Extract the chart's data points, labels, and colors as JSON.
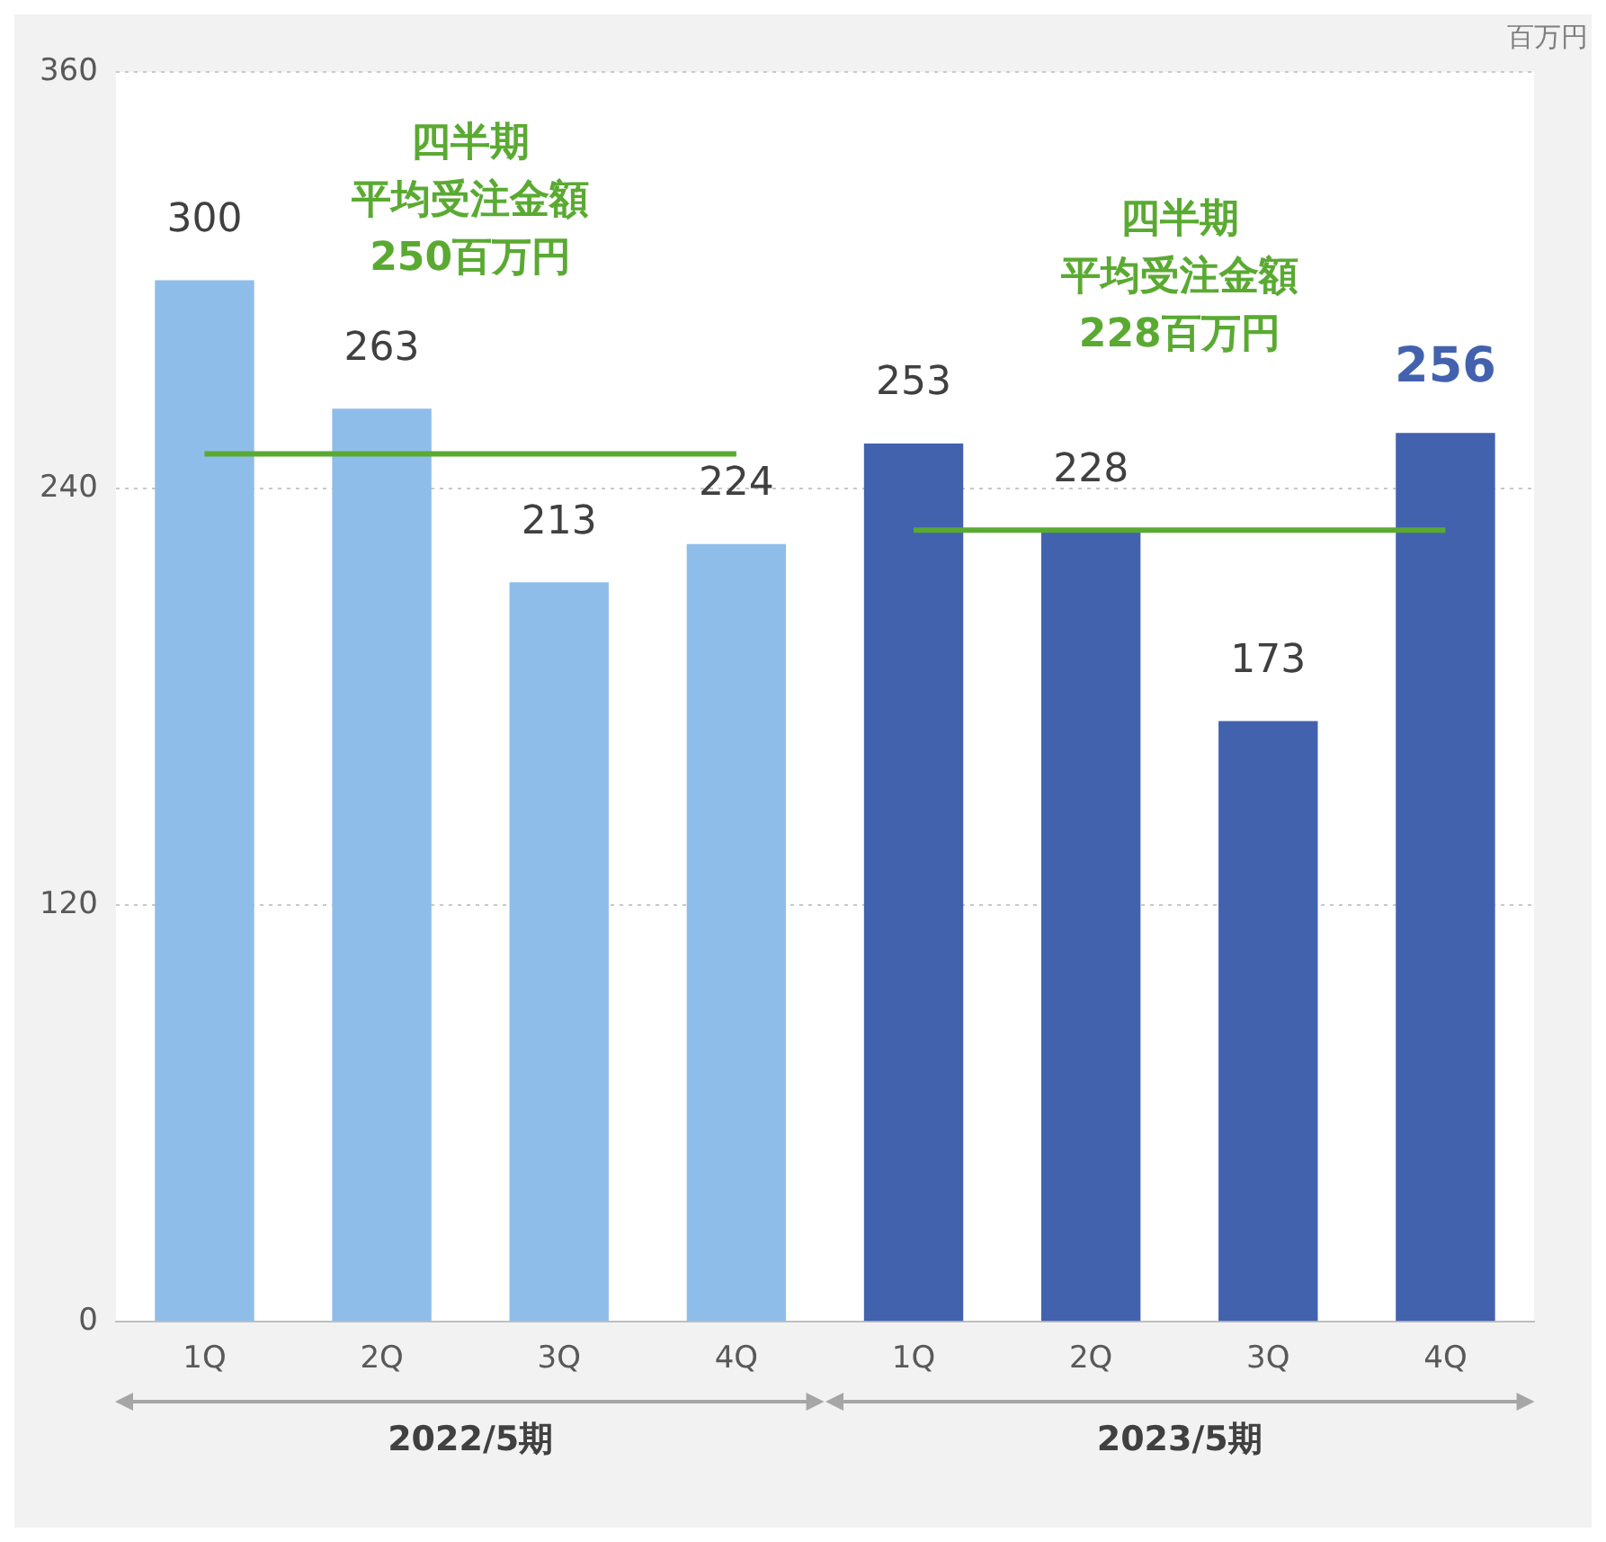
{
  "chart_data": {
    "type": "bar",
    "categories": [
      "1Q",
      "2Q",
      "3Q",
      "4Q",
      "1Q",
      "2Q",
      "3Q",
      "4Q"
    ],
    "ylabel": "百万円",
    "ylim": [
      0,
      360
    ],
    "yticks": [
      0,
      120,
      240,
      360
    ],
    "grid": "y",
    "legend": false,
    "marker": "none",
    "series": [
      {
        "colors": [
          "#8fbde9",
          "#8fbde9",
          "#8fbde9",
          "#8fbde9",
          "#4262ae",
          "#4262ae",
          "#4262ae",
          "#4262ae"
        ],
        "values": [
          300,
          263,
          213,
          224,
          253,
          228,
          173,
          256
        ],
        "value_labels": [
          "300",
          "263",
          "213",
          "224",
          "253",
          "228",
          "173",
          "256"
        ]
      },
      {
        "type": "line",
        "color": "#5aaa32",
        "values": [
          250,
          250,
          250,
          250,
          null,
          null,
          null,
          null
        ]
      },
      {
        "type": "line",
        "color": "#5aaa32",
        "values": [
          null,
          null,
          null,
          null,
          228,
          228,
          228,
          228
        ]
      }
    ],
    "annotations": [
      "四半期",
      "平均受注金額",
      "250百万円",
      "四半期",
      "平均受注金額",
      "228百万円",
      "2022/5期",
      "2023/5期"
    ]
  }
}
